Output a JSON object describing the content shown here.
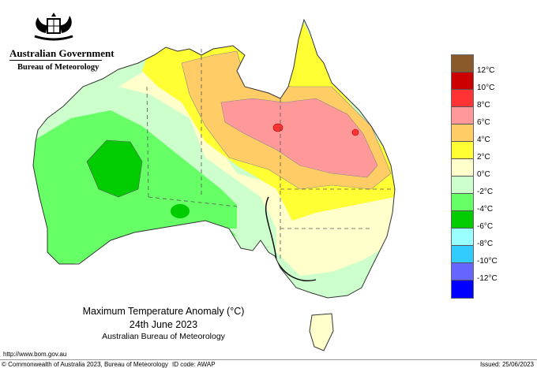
{
  "header": {
    "government": "Australian Government",
    "bureau": "Bureau of Meteorology"
  },
  "title": {
    "line1": "Maximum Temperature Anomaly (°C)",
    "line2": "24th June 2023",
    "line3": "Australian Bureau of Meteorology"
  },
  "footer": {
    "url": "http://www.bom.gov.au",
    "copyright": "© Commonwealth of Australia 2023, Bureau of Meteorology",
    "id_code": "ID code: AWAP",
    "issued": "Issued: 25/06/2023"
  },
  "legend": {
    "colors": [
      "#8b5a2b",
      "#cc0000",
      "#ff3333",
      "#ff9999",
      "#ffcc66",
      "#ffff33",
      "#ffffcc",
      "#ccffcc",
      "#66ff66",
      "#00cc00",
      "#99ffff",
      "#33ccff",
      "#6666ff",
      "#0000ff"
    ],
    "labels": [
      "12°C",
      "10°C",
      "8°C",
      "6°C",
      "4°C",
      "2°C",
      "0°C",
      "-2°C",
      "-4°C",
      "-6°C",
      "-8°C",
      "-10°C",
      "-12°C"
    ]
  }
}
